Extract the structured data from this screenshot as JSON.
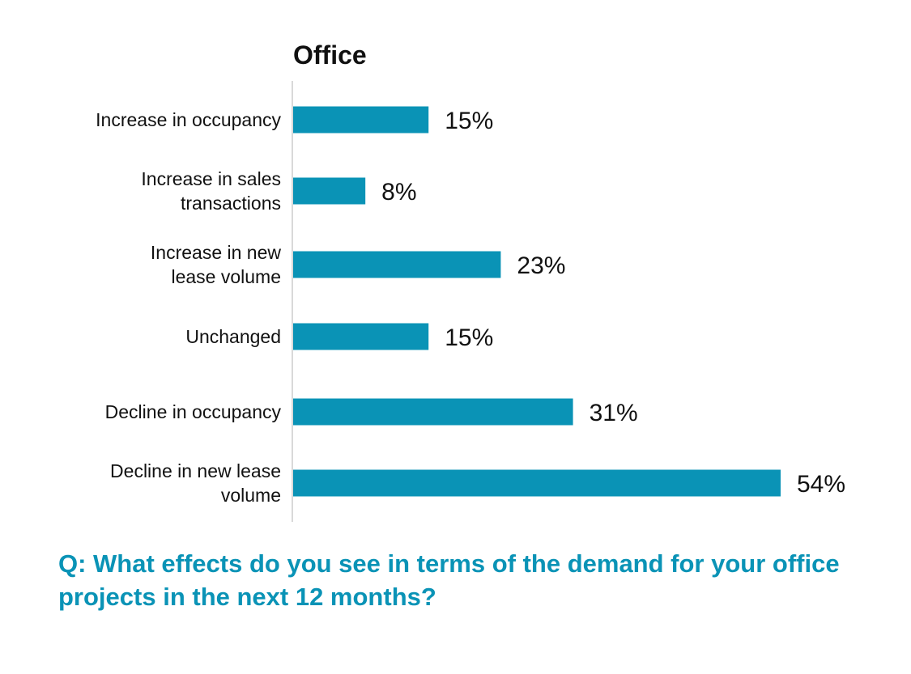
{
  "chart_data": {
    "type": "bar",
    "orientation": "horizontal",
    "title": "Office",
    "categories": [
      [
        "Increase in occupancy"
      ],
      [
        "Increase in sales",
        "transactions"
      ],
      [
        "Increase in new",
        "lease volume"
      ],
      [
        "Unchanged"
      ],
      [
        "Decline in occupancy"
      ],
      [
        "Decline in new lease",
        "volume"
      ]
    ],
    "values": [
      15,
      8,
      23,
      15,
      31,
      54
    ],
    "value_labels": [
      "15%",
      "8%",
      "23%",
      "15%",
      "31%",
      "54%"
    ],
    "xlabel": "",
    "ylabel": "",
    "xlim": [
      0,
      54
    ],
    "grid": false,
    "legend": "none"
  },
  "colors": {
    "bar": "#0a93b6",
    "axis": "#d9d9d9",
    "text": "#111111",
    "question": "#0a93b6"
  },
  "question": "Q: What effects do you see in terms of the demand for your office projects in the next 12 months?"
}
